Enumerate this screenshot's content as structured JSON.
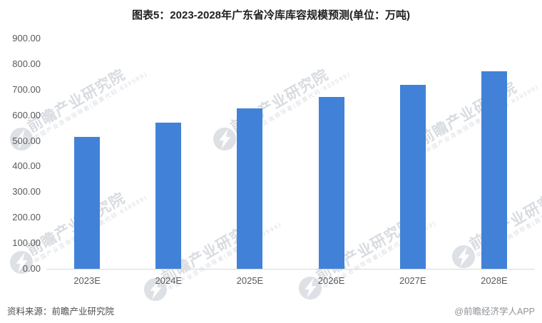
{
  "title": "图表5：2023-2028年广东省冷库库容规模预测(单位：万吨)",
  "chart_data": {
    "type": "bar",
    "title": "图表5：2023-2028年广东省冷库库容规模预测(单位：万吨)",
    "categories": [
      "2023E",
      "2024E",
      "2025E",
      "2026E",
      "2027E",
      "2028E"
    ],
    "values": [
      515,
      570,
      627,
      671,
      719,
      772
    ],
    "xlabel": "",
    "ylabel": "",
    "ylim": [
      0,
      900
    ],
    "y_tick_step": 100,
    "y_ticks": [
      "0.00",
      "100.00",
      "200.00",
      "300.00",
      "400.00",
      "500.00",
      "600.00",
      "700.00",
      "800.00",
      "900.00"
    ],
    "bar_color": "#4182d8",
    "axis_line_color": "#d9d9d9",
    "grid": false,
    "legend": "none"
  },
  "footer": {
    "source": "资料来源：前瞻产业研究院",
    "credit": "@前瞻经济学人APP"
  },
  "watermark": {
    "main": "前瞻产业研究院",
    "sub": "中国产业咨询领导者(股票代码:839599)"
  }
}
